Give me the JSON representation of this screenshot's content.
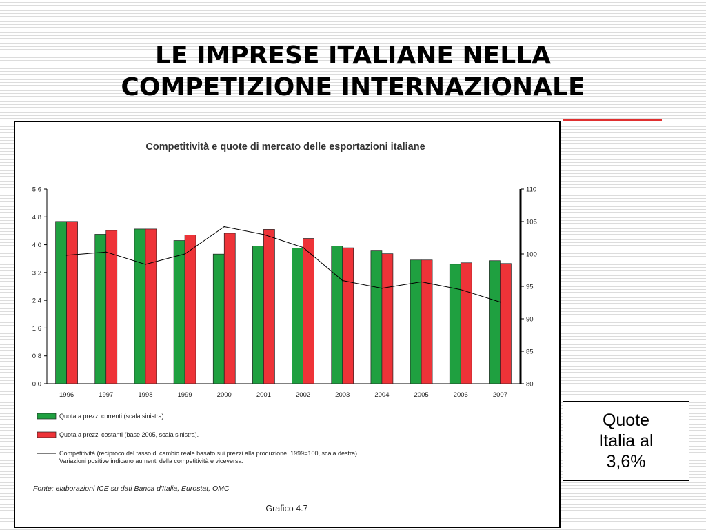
{
  "slide": {
    "title_line1": "LE IMPRESE ITALIANE NELLA",
    "title_line2": "COMPETIZIONE INTERNAZIONALE",
    "accent_color": "#e03030"
  },
  "callout": {
    "line1": "Quote",
    "line2": "Italia al",
    "line3": "3,6%"
  },
  "chart_data": {
    "type": "bar",
    "title": "Competitività e quote di mercato delle esportazioni italiane",
    "categories": [
      "1996",
      "1997",
      "1998",
      "1999",
      "2000",
      "2001",
      "2002",
      "2003",
      "2004",
      "2005",
      "2006",
      "2007"
    ],
    "series": [
      {
        "name": "Quota a prezzi correnti  (scala sinistra).",
        "type": "bar",
        "axis": "left",
        "color": "#1fa040",
        "values": [
          4.67,
          4.3,
          4.45,
          4.12,
          3.73,
          3.96,
          3.9,
          3.96,
          3.84,
          3.56,
          3.44,
          3.54
        ]
      },
      {
        "name": "Quota a prezzi costanti (base 2005, scala sinistra).",
        "type": "bar",
        "axis": "left",
        "color": "#ee3338",
        "values": [
          4.67,
          4.41,
          4.45,
          4.28,
          4.33,
          4.44,
          4.18,
          3.91,
          3.74,
          3.56,
          3.48,
          3.46
        ]
      },
      {
        "name": "Competitività (reciproco del tasso di cambio reale basato sui prezzi alla produzione, 1999=100, scala destra). Variazioni positive indicano aumenti della competitività e viceversa.",
        "type": "line",
        "axis": "right",
        "color": "#000000",
        "values": [
          99.8,
          100.3,
          98.4,
          100.0,
          104.2,
          103.0,
          101.0,
          95.9,
          94.7,
          95.7,
          94.5,
          92.6
        ]
      }
    ],
    "y_left": {
      "min": 0,
      "max": 5.6,
      "ticks": [
        "0,0",
        "0,8",
        "1,6",
        "2,4",
        "3,2",
        "4,0",
        "4,8",
        "5,6"
      ]
    },
    "y_right": {
      "min": 80,
      "max": 110,
      "ticks": [
        "80",
        "85",
        "90",
        "95",
        "100",
        "105",
        "110"
      ]
    },
    "legend_placement": "bottom",
    "source": "Fonte: elaborazioni ICE su dati Banca d'Italia, Eurostat, OMC",
    "caption": "Grafico 4.7",
    "grid": false
  }
}
